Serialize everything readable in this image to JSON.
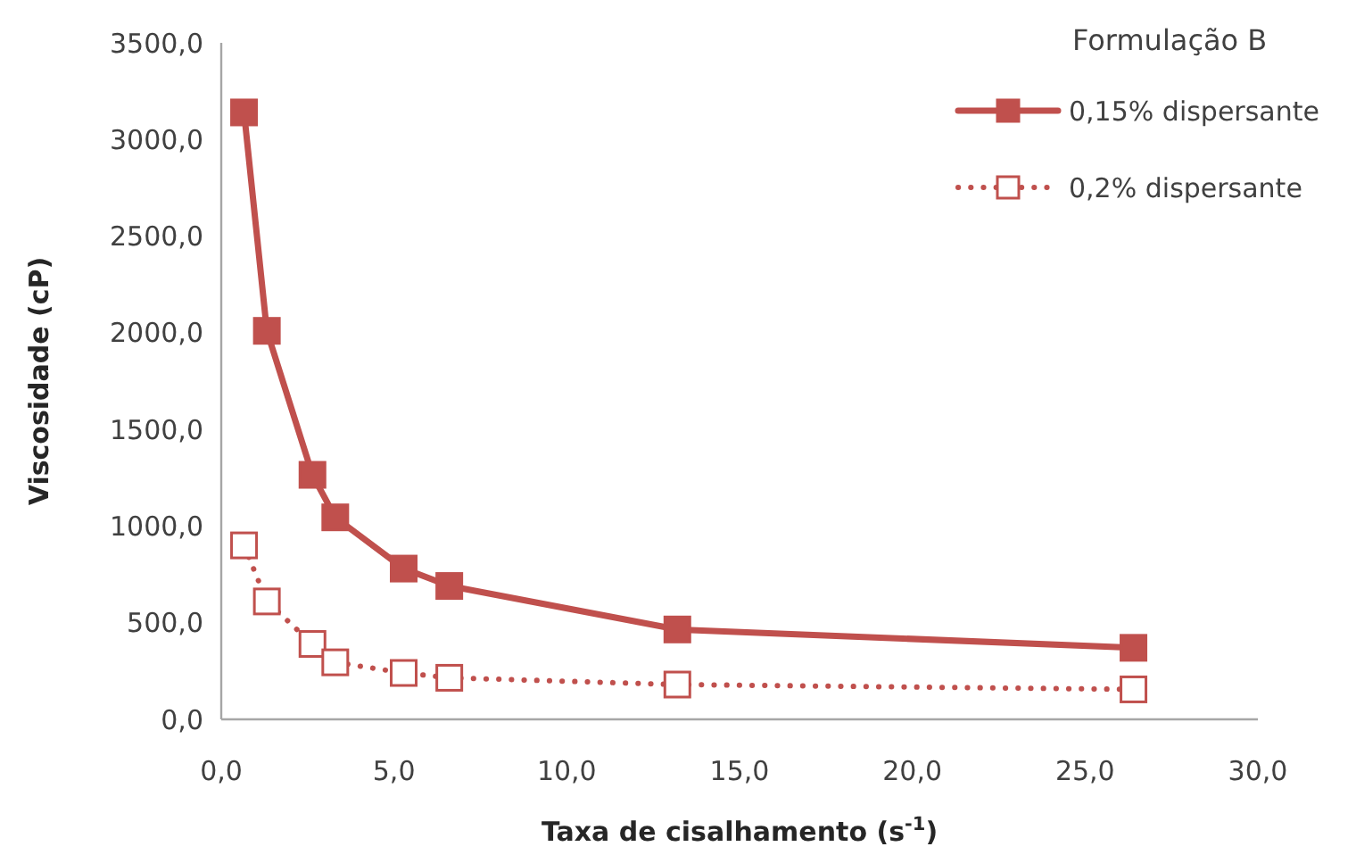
{
  "chart_data": {
    "type": "line",
    "xlabel": "Taxa de cisalhamento (s$^{-1}$)",
    "ylabel": "Viscosidade (cP)",
    "legend_title": "Formulação B",
    "legend": "top right",
    "marker": "square",
    "grid": false,
    "xlim": [
      0,
      30
    ],
    "xticks": [
      {
        "value": 0,
        "label": "0,0"
      },
      {
        "value": 5,
        "label": "5,0"
      },
      {
        "value": 10,
        "label": "10,0"
      },
      {
        "value": 15,
        "label": "15,0"
      },
      {
        "value": 20,
        "label": "20,0"
      },
      {
        "value": 25,
        "label": "25,0"
      },
      {
        "value": 30,
        "label": "30,0"
      }
    ],
    "ylim": [
      0,
      3500
    ],
    "yticks": [
      {
        "value": 0,
        "label": "0,0"
      },
      {
        "value": 500,
        "label": "500,0"
      },
      {
        "value": 1000,
        "label": "1000,0"
      },
      {
        "value": 1500,
        "label": "1500,0"
      },
      {
        "value": 2000,
        "label": "2000,0"
      },
      {
        "value": 2500,
        "label": "2500,0"
      },
      {
        "value": 3000,
        "label": "3000,0"
      },
      {
        "value": 3500,
        "label": "3500,0"
      }
    ],
    "x": [
      0.66,
      1.32,
      2.64,
      3.3,
      5.28,
      6.6,
      13.2,
      26.4
    ],
    "series": [
      {
        "name": "0,15% dispersante",
        "color": "#c0504d",
        "line_style": "solid",
        "values": [
          3140,
          2010,
          1265,
          1045,
          780,
          690,
          465,
          370
        ]
      },
      {
        "name": "0,2% dispersante",
        "color": "#c0504d",
        "line_style": "dotted",
        "values": [
          900,
          610,
          390,
          295,
          240,
          215,
          180,
          155
        ]
      }
    ]
  }
}
